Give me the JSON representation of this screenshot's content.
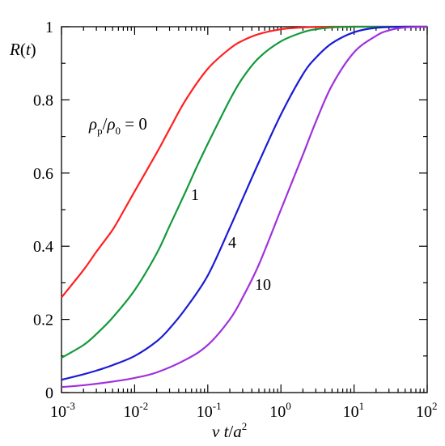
{
  "chart_data": {
    "type": "line",
    "xscale": "log",
    "xlim": [
      0.001,
      100
    ],
    "ylim": [
      0,
      1
    ],
    "grid": false,
    "legend": "none",
    "x_ticks": [
      {
        "base": "10",
        "exp": "-3"
      },
      {
        "base": "10",
        "exp": "-2"
      },
      {
        "base": "10",
        "exp": "-1"
      },
      {
        "base": "10",
        "exp": "0"
      },
      {
        "base": "10",
        "exp": "1"
      },
      {
        "base": "10",
        "exp": "2"
      }
    ],
    "y_ticks": [
      "0",
      "0.2",
      "0.4",
      "0.6",
      "0.8",
      "1"
    ],
    "y_label": {
      "main": "R",
      "open": "(",
      "var": "t",
      "close": ")"
    },
    "x_label": {
      "nu": "ν",
      "t": " t",
      "slash": "/",
      "a": "a",
      "exp": "2"
    },
    "param_label": {
      "rho": "ρ",
      "p": "p",
      "slash": "/",
      "zero_sub": "0",
      "eq": " = 0"
    },
    "series": [
      {
        "label": "0",
        "color": "#ff2020",
        "points": [
          [
            0.001,
            0.26
          ],
          [
            0.002,
            0.335
          ],
          [
            0.003,
            0.385
          ],
          [
            0.005,
            0.445
          ],
          [
            0.007,
            0.495
          ],
          [
            0.01,
            0.55
          ],
          [
            0.02,
            0.655
          ],
          [
            0.03,
            0.72
          ],
          [
            0.05,
            0.8
          ],
          [
            0.1,
            0.885
          ],
          [
            0.2,
            0.94
          ],
          [
            0.3,
            0.962
          ],
          [
            0.5,
            0.98
          ],
          [
            1,
            0.993
          ],
          [
            2,
            0.998
          ],
          [
            5,
            1.0
          ],
          [
            100,
            1.0
          ]
        ]
      },
      {
        "label": "1",
        "color": "#129a3a",
        "points": [
          [
            0.001,
            0.095
          ],
          [
            0.002,
            0.13
          ],
          [
            0.003,
            0.16
          ],
          [
            0.005,
            0.205
          ],
          [
            0.01,
            0.28
          ],
          [
            0.02,
            0.38
          ],
          [
            0.03,
            0.455
          ],
          [
            0.05,
            0.55
          ],
          [
            0.07,
            0.615
          ],
          [
            0.1,
            0.68
          ],
          [
            0.2,
            0.8
          ],
          [
            0.3,
            0.86
          ],
          [
            0.5,
            0.915
          ],
          [
            1,
            0.96
          ],
          [
            2,
            0.985
          ],
          [
            3,
            0.993
          ],
          [
            5,
            0.998
          ],
          [
            10,
            1.0
          ],
          [
            100,
            1.0
          ]
        ]
      },
      {
        "label": "4",
        "color": "#1a1ad6",
        "points": [
          [
            0.001,
            0.035
          ],
          [
            0.002,
            0.05
          ],
          [
            0.003,
            0.06
          ],
          [
            0.005,
            0.075
          ],
          [
            0.01,
            0.1
          ],
          [
            0.02,
            0.14
          ],
          [
            0.03,
            0.175
          ],
          [
            0.05,
            0.23
          ],
          [
            0.1,
            0.32
          ],
          [
            0.2,
            0.45
          ],
          [
            0.3,
            0.53
          ],
          [
            0.5,
            0.63
          ],
          [
            1,
            0.76
          ],
          [
            2,
            0.87
          ],
          [
            3,
            0.915
          ],
          [
            5,
            0.955
          ],
          [
            10,
            0.985
          ],
          [
            20,
            0.997
          ],
          [
            50,
            1.0
          ],
          [
            100,
            1.0
          ]
        ]
      },
      {
        "label": "10",
        "color": "#a030dc",
        "points": [
          [
            0.001,
            0.015
          ],
          [
            0.002,
            0.02
          ],
          [
            0.005,
            0.03
          ],
          [
            0.01,
            0.04
          ],
          [
            0.02,
            0.055
          ],
          [
            0.05,
            0.09
          ],
          [
            0.1,
            0.13
          ],
          [
            0.2,
            0.2
          ],
          [
            0.3,
            0.26
          ],
          [
            0.5,
            0.35
          ],
          [
            1,
            0.5
          ],
          [
            2,
            0.65
          ],
          [
            3,
            0.74
          ],
          [
            5,
            0.84
          ],
          [
            10,
            0.93
          ],
          [
            20,
            0.975
          ],
          [
            30,
            0.99
          ],
          [
            50,
            0.998
          ],
          [
            100,
            1.0
          ]
        ]
      }
    ]
  }
}
